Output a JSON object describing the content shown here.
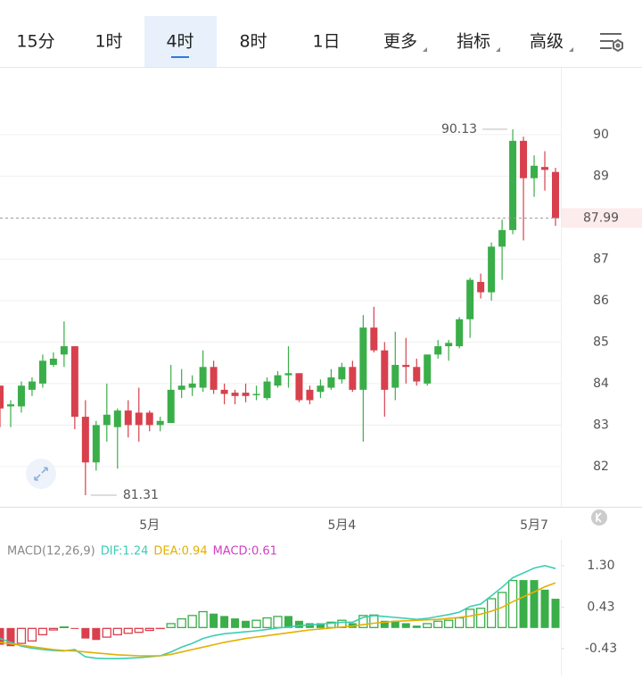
{
  "toolbar": {
    "tabs": [
      "15分",
      "1时",
      "4时",
      "8时",
      "1日",
      "更多",
      "指标",
      "高级"
    ],
    "selected_index": 2
  },
  "chart_data": [
    {
      "type": "candlestick",
      "categories": [
        null,
        null,
        null,
        null,
        null,
        null,
        null,
        null,
        null,
        null,
        null,
        null,
        null,
        null,
        "5月",
        null,
        null,
        null,
        null,
        null,
        null,
        null,
        null,
        null,
        null,
        null,
        null,
        null,
        null,
        null,
        null,
        null,
        "5月4",
        null,
        null,
        null,
        null,
        null,
        null,
        null,
        null,
        null,
        null,
        null,
        null,
        null,
        null,
        null,
        null,
        null,
        "5月7",
        null,
        null
      ],
      "open": [
        83.95,
        83.45,
        83.45,
        83.85,
        84.0,
        84.45,
        84.7,
        84.9,
        83.2,
        82.1,
        83.0,
        82.95,
        83.35,
        83.3,
        83.3,
        83.0,
        83.05,
        83.85,
        83.9,
        83.9,
        84.4,
        83.85,
        83.78,
        83.78,
        83.72,
        83.65,
        83.95,
        84.2,
        84.25,
        83.85,
        83.8,
        83.9,
        84.1,
        84.4,
        83.85,
        85.35,
        84.8,
        83.9,
        84.45,
        84.4,
        84.0,
        84.7,
        84.9,
        84.9,
        85.55,
        86.45,
        86.2,
        87.3,
        87.7,
        89.85,
        88.95,
        89.22,
        89.1
      ],
      "high": [
        83.95,
        83.6,
        84.05,
        84.15,
        84.7,
        84.75,
        85.5,
        84.9,
        83.6,
        83.1,
        84.0,
        83.4,
        83.6,
        83.9,
        83.35,
        83.2,
        84.45,
        84.35,
        84.2,
        84.8,
        84.55,
        84.0,
        83.85,
        84.0,
        83.95,
        84.15,
        84.3,
        84.9,
        84.25,
        83.95,
        84.1,
        84.35,
        84.5,
        84.55,
        85.65,
        85.85,
        85.0,
        85.25,
        85.1,
        84.6,
        84.7,
        85.05,
        85.05,
        85.6,
        86.55,
        86.65,
        87.4,
        87.95,
        90.13,
        89.95,
        89.5,
        89.6,
        89.2
      ],
      "low": [
        82.95,
        82.95,
        83.3,
        83.7,
        83.9,
        84.4,
        84.4,
        82.9,
        81.31,
        81.9,
        82.6,
        81.95,
        82.7,
        82.6,
        82.85,
        82.85,
        83.05,
        83.65,
        83.7,
        83.8,
        83.75,
        83.5,
        83.5,
        83.55,
        83.6,
        83.6,
        83.9,
        83.9,
        83.55,
        83.5,
        83.65,
        83.85,
        84.0,
        83.8,
        82.6,
        84.75,
        83.2,
        83.6,
        84.0,
        83.95,
        83.95,
        84.6,
        84.55,
        84.85,
        85.1,
        86.05,
        86.0,
        86.5,
        87.6,
        87.45,
        88.5,
        88.65,
        87.8
      ],
      "close": [
        83.4,
        83.5,
        83.95,
        84.05,
        84.55,
        84.6,
        84.9,
        83.2,
        82.1,
        83.0,
        83.25,
        83.35,
        83.0,
        83.0,
        83.0,
        83.1,
        83.85,
        83.95,
        84.0,
        84.4,
        83.85,
        83.75,
        83.7,
        83.7,
        83.75,
        84.05,
        84.2,
        84.25,
        83.6,
        83.6,
        83.95,
        84.15,
        84.4,
        83.85,
        85.35,
        84.8,
        83.85,
        84.45,
        84.4,
        84.05,
        84.7,
        84.9,
        84.98,
        85.55,
        86.5,
        86.2,
        87.3,
        87.7,
        89.85,
        88.95,
        89.25,
        89.15,
        87.99
      ],
      "up_color": "#3aae49",
      "down_color": "#d8404d",
      "ylim": [
        81.03,
        91.61
      ],
      "yticks": [
        82,
        83,
        84,
        85,
        86,
        87,
        89,
        90
      ],
      "grid": true
    },
    {
      "type": "macd",
      "title": "MACD(12,26,9)",
      "series": [
        {
          "name": "DIF",
          "legend_label": "DIF:1.24",
          "color": "#3ccdb4",
          "values": [
            -0.22,
            -0.3,
            -0.38,
            -0.42,
            -0.45,
            -0.47,
            -0.48,
            -0.45,
            -0.6,
            -0.63,
            -0.64,
            -0.64,
            -0.63,
            -0.62,
            -0.6,
            -0.58,
            -0.5,
            -0.4,
            -0.32,
            -0.22,
            -0.16,
            -0.12,
            -0.1,
            -0.08,
            -0.06,
            -0.03,
            0.0,
            0.02,
            0.05,
            0.06,
            0.08,
            0.1,
            0.12,
            0.12,
            0.22,
            0.26,
            0.24,
            0.22,
            0.2,
            0.18,
            0.2,
            0.24,
            0.28,
            0.33,
            0.45,
            0.5,
            0.67,
            0.85,
            1.05,
            1.15,
            1.25,
            1.3,
            1.24
          ]
        },
        {
          "name": "DEA",
          "legend_label": "DEA:0.94",
          "color": "#e5b000",
          "values": [
            -0.3,
            -0.33,
            -0.36,
            -0.39,
            -0.42,
            -0.45,
            -0.47,
            -0.48,
            -0.5,
            -0.52,
            -0.54,
            -0.56,
            -0.57,
            -0.58,
            -0.58,
            -0.58,
            -0.55,
            -0.5,
            -0.45,
            -0.4,
            -0.35,
            -0.3,
            -0.26,
            -0.22,
            -0.19,
            -0.16,
            -0.13,
            -0.1,
            -0.07,
            -0.04,
            -0.02,
            0.0,
            0.02,
            0.04,
            0.07,
            0.1,
            0.12,
            0.14,
            0.15,
            0.16,
            0.17,
            0.18,
            0.2,
            0.22,
            0.25,
            0.29,
            0.35,
            0.43,
            0.55,
            0.65,
            0.75,
            0.86,
            0.94
          ]
        },
        {
          "name": "MACD",
          "legend_label": "MACD:0.61",
          "color": "#d23fc4",
          "up_color": "#3aae49",
          "down_color": "#d8404d",
          "values": [
            -0.35,
            -0.38,
            -0.33,
            -0.28,
            -0.15,
            -0.05,
            0.03,
            -0.02,
            -0.22,
            -0.25,
            -0.2,
            -0.15,
            -0.12,
            -0.1,
            -0.06,
            -0.02,
            0.1,
            0.2,
            0.27,
            0.35,
            0.3,
            0.25,
            0.2,
            0.15,
            0.17,
            0.22,
            0.25,
            0.25,
            0.15,
            0.1,
            0.1,
            0.13,
            0.17,
            0.1,
            0.27,
            0.28,
            0.15,
            0.15,
            0.1,
            0.05,
            0.1,
            0.15,
            0.17,
            0.22,
            0.4,
            0.42,
            0.62,
            0.75,
            1.0,
            1.0,
            1.0,
            0.8,
            0.61
          ]
        }
      ],
      "ylim": [
        -0.99,
        1.84
      ],
      "yticks": [
        {
          "value": 1.3,
          "label": "1.30"
        },
        0.43,
        -0.43
      ]
    }
  ]
}
